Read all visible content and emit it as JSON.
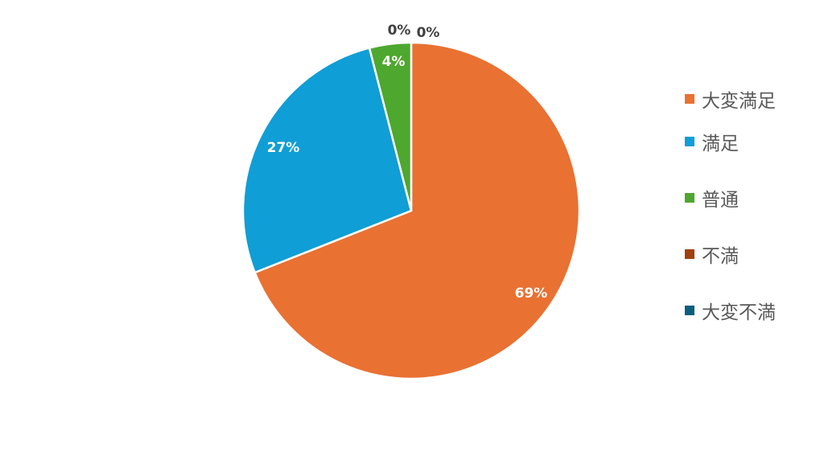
{
  "chart_data": {
    "type": "pie",
    "title": "",
    "start_angle": "12 o'clock, clockwise",
    "categories": [
      "大変満足",
      "満足",
      "普通",
      "不満",
      "大変不満"
    ],
    "values": [
      69,
      27,
      4,
      0,
      0
    ],
    "data_labels": [
      "69%",
      "27%",
      "4%",
      "0%",
      "0%"
    ],
    "colors": [
      "#E97132",
      "#0F9ED5",
      "#4EA72E",
      "#A0400F",
      "#0D5E7E"
    ],
    "legend_position": "right"
  }
}
